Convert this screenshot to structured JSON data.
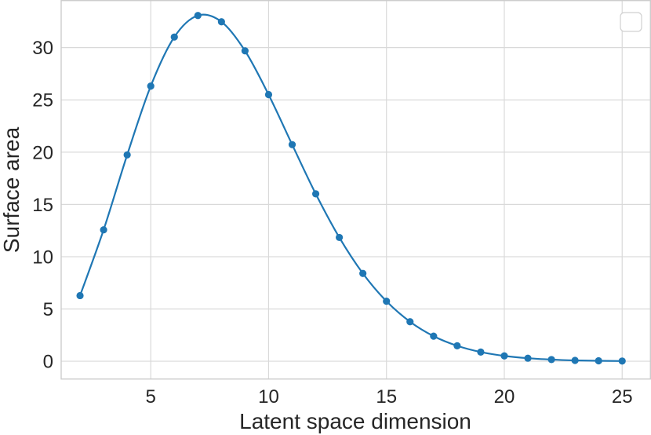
{
  "chart_data": {
    "type": "line",
    "xlabel": "Latent space dimension",
    "ylabel": "Surface area",
    "xlim": [
      1.2,
      26.2
    ],
    "ylim": [
      -1.7,
      34.5
    ],
    "xticks": [
      5,
      10,
      15,
      20,
      25
    ],
    "yticks": [
      0,
      5,
      10,
      15,
      20,
      25,
      30
    ],
    "xtick_labels": [
      "5",
      "10",
      "15",
      "20",
      "25"
    ],
    "ytick_labels": [
      "0",
      "5",
      "10",
      "15",
      "20",
      "25",
      "30"
    ],
    "grid": true,
    "legend": "upper right (empty)",
    "series": [
      {
        "color": "#1f77b4",
        "marker": "circle",
        "smooth": true,
        "x": [
          2,
          3,
          4,
          5,
          6,
          7,
          8,
          9,
          10,
          11,
          12,
          13,
          14,
          15,
          16,
          17,
          18,
          19,
          20,
          21,
          22,
          23,
          24,
          25
        ],
        "y": [
          6.28,
          12.57,
          19.74,
          26.32,
          31.01,
          33.07,
          32.47,
          29.69,
          25.5,
          20.72,
          16.01,
          11.84,
          8.4,
          5.74,
          3.78,
          2.4,
          1.48,
          0.88,
          0.51,
          0.29,
          0.16,
          0.08,
          0.04,
          0.02
        ]
      }
    ]
  }
}
